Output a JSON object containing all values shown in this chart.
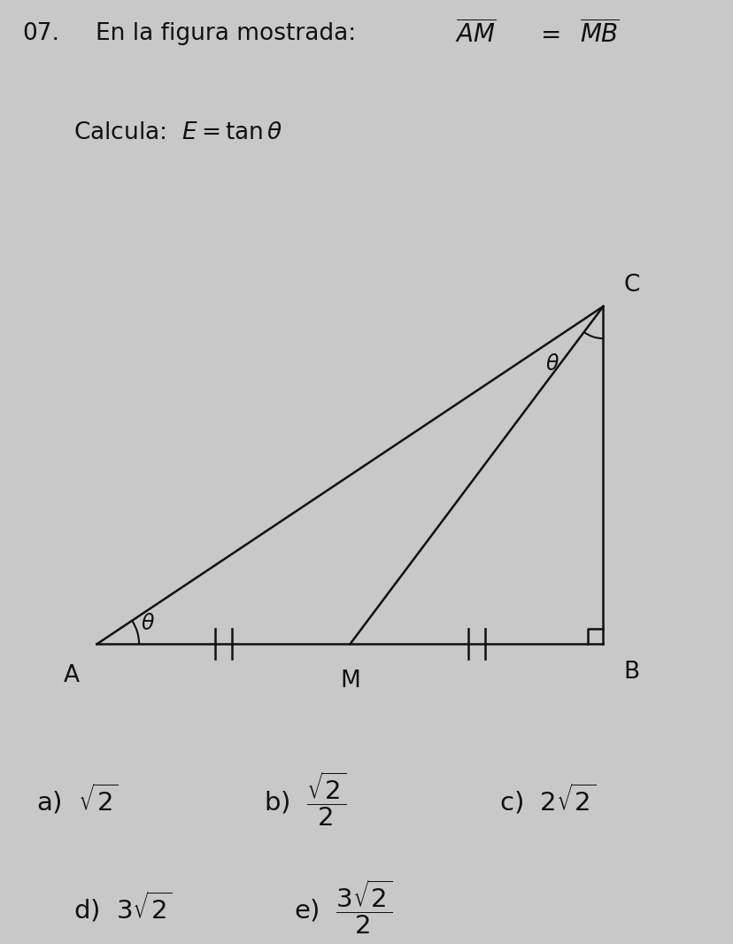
{
  "bg_color": "#c8c8c8",
  "point_A": [
    0.0,
    0.0
  ],
  "point_M": [
    1.5,
    0.0
  ],
  "point_B": [
    3.0,
    0.0
  ],
  "point_C": [
    3.0,
    2.0
  ],
  "label_A": "A",
  "label_M": "M",
  "label_B": "B",
  "label_C": "C",
  "line_color": "#111111",
  "text_color": "#111111",
  "font_size_labels": 17,
  "font_size_title": 19,
  "font_size_options": 21
}
